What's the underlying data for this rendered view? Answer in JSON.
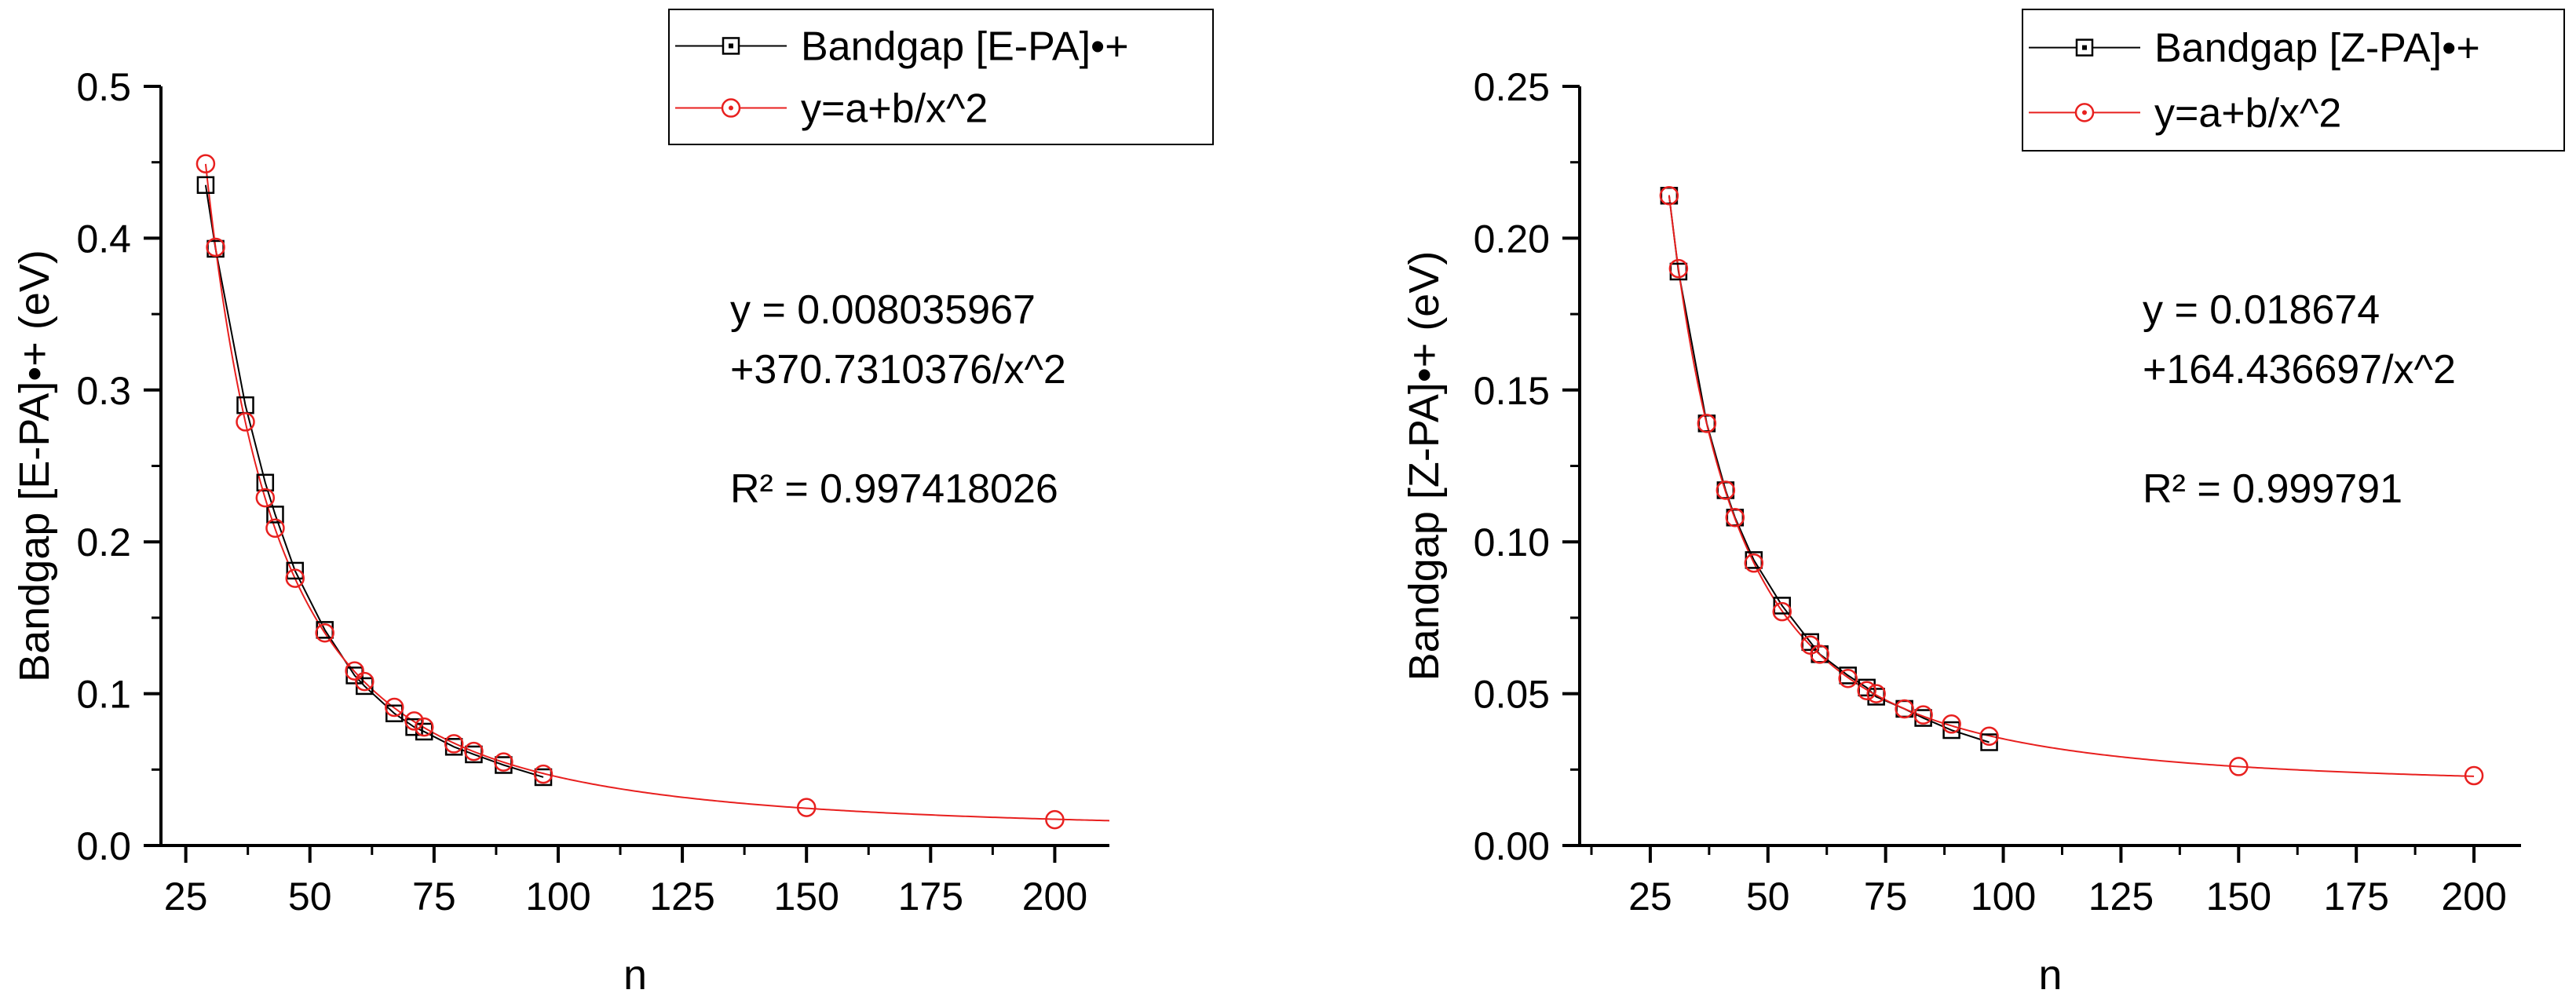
{
  "chart_data": [
    {
      "type": "scatter",
      "title": "",
      "xlabel": "n",
      "ylabel": "Bandgap [E-PA]•+ (eV)",
      "xlim": [
        20,
        211
      ],
      "ylim": [
        0,
        0.5
      ],
      "x_ticks": [
        25,
        50,
        75,
        100,
        125,
        150,
        175,
        200
      ],
      "x_tick_labels": [
        "25",
        "50",
        "75",
        "100",
        "125",
        "150",
        "175",
        "200"
      ],
      "y_ticks": [
        0,
        0.1,
        0.2,
        0.3,
        0.4,
        0.5
      ],
      "y_tick_labels": [
        "0.0",
        "0.1",
        "0.2",
        "0.3",
        "0.4",
        "0.5"
      ],
      "grid": false,
      "legend_position": "top-right",
      "series": [
        {
          "name": "Bandgap [E-PA]•+",
          "marker": "square",
          "color": "#000000",
          "x": [
            29,
            31,
            37,
            41,
            43,
            47,
            53,
            59,
            61,
            67,
            71,
            73,
            79,
            83,
            89,
            97
          ],
          "y": [
            0.435,
            0.393,
            0.29,
            0.239,
            0.218,
            0.181,
            0.142,
            0.112,
            0.105,
            0.087,
            0.078,
            0.075,
            0.065,
            0.06,
            0.053,
            0.045
          ]
        },
        {
          "name": "y=a+b/x^2",
          "marker": "circle",
          "color": "#e8201f",
          "x": [
            29,
            31,
            37,
            41,
            43,
            47,
            53,
            59,
            61,
            67,
            71,
            73,
            79,
            83,
            89,
            97,
            150,
            200
          ],
          "y": [
            0.449,
            0.394,
            0.279,
            0.229,
            0.209,
            0.176,
            0.14,
            0.115,
            0.108,
            0.091,
            0.082,
            0.078,
            0.067,
            0.062,
            0.055,
            0.047,
            0.025,
            0.017
          ]
        }
      ],
      "fit_curve": {
        "a": 0.008035967,
        "b": 370.7310376,
        "x_start": 29,
        "x_end": 211
      },
      "annotation_lines": [
        "y = 0.008035967",
        "+370.7310376/x^2",
        "R² = 0.997418026"
      ]
    },
    {
      "type": "scatter",
      "title": "",
      "xlabel": "n",
      "ylabel": "Bandgap [Z-PA]•+ (eV)",
      "xlim": [
        10,
        210
      ],
      "ylim": [
        0,
        0.25
      ],
      "x_ticks": [
        25,
        50,
        75,
        100,
        125,
        150,
        175,
        200
      ],
      "x_tick_labels": [
        "25",
        "50",
        "75",
        "100",
        "125",
        "150",
        "175",
        "200"
      ],
      "y_ticks": [
        0,
        0.05,
        0.1,
        0.15,
        0.2,
        0.25
      ],
      "y_tick_labels": [
        "0.00",
        "0.05",
        "0.10",
        "0.15",
        "0.20",
        "0.25"
      ],
      "grid": false,
      "legend_position": "top-right",
      "series": [
        {
          "name": "Bandgap [Z-PA]•+",
          "marker": "square",
          "color": "#000000",
          "x": [
            29,
            31,
            37,
            41,
            43,
            47,
            53,
            59,
            61,
            67,
            71,
            73,
            79,
            83,
            89,
            97
          ],
          "y": [
            0.214,
            0.189,
            0.139,
            0.117,
            0.108,
            0.094,
            0.079,
            0.067,
            0.063,
            0.056,
            0.052,
            0.049,
            0.045,
            0.042,
            0.038,
            0.034
          ]
        },
        {
          "name": "y=a+b/x^2",
          "marker": "circle",
          "color": "#e8201f",
          "x": [
            29,
            31,
            37,
            41,
            43,
            47,
            53,
            59,
            61,
            67,
            71,
            73,
            79,
            83,
            89,
            97,
            150,
            200
          ],
          "y": [
            0.214,
            0.19,
            0.139,
            0.117,
            0.108,
            0.093,
            0.077,
            0.066,
            0.063,
            0.055,
            0.051,
            0.05,
            0.045,
            0.043,
            0.04,
            0.036,
            0.026,
            0.023
          ]
        }
      ],
      "fit_curve": {
        "a": 0.018674,
        "b": 164.436697,
        "x_start": 29,
        "x_end": 200
      },
      "annotation_lines": [
        "y = 0.018674",
        "+164.436697/x^2",
        "R² = 0.999791"
      ]
    }
  ]
}
